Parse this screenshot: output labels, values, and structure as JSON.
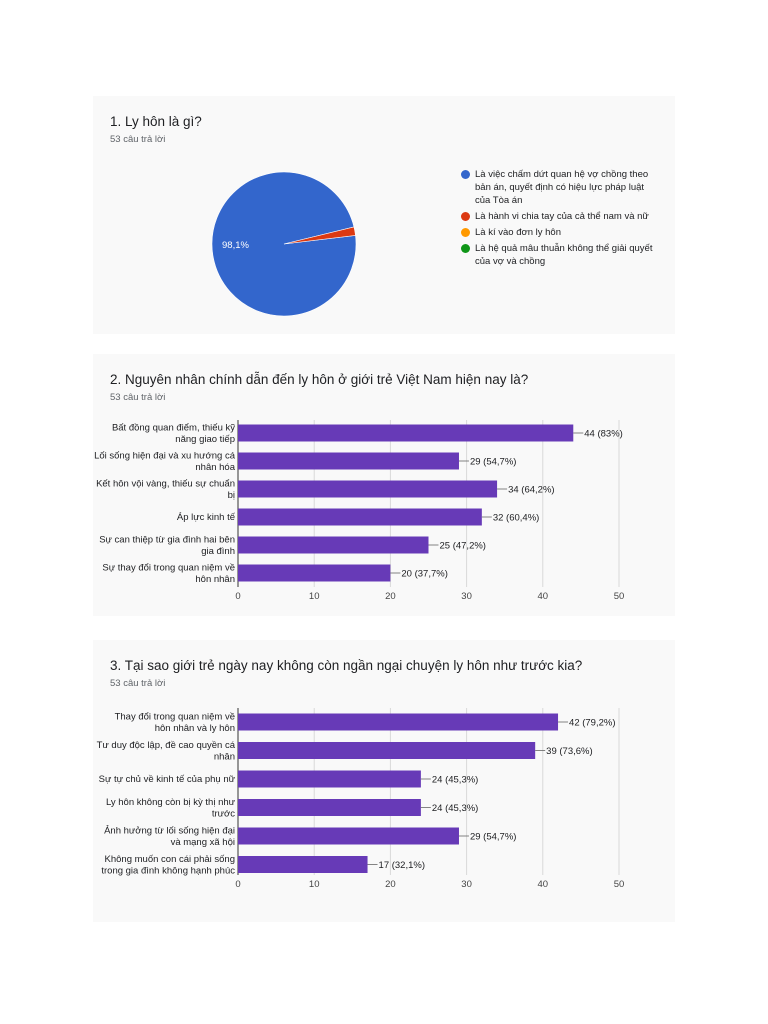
{
  "colors": {
    "bar": "#673ab7",
    "pie_main": "#3366cc",
    "pie_red": "#dc3912",
    "pie_orange": "#ff9900",
    "pie_green": "#109618"
  },
  "q1": {
    "title": "1. Ly hôn là gì?",
    "subtitle": "53 câu trả lời"
  },
  "q2": {
    "title": "2. Nguyên nhân chính dẫn đến ly hôn ở giới trẻ Việt Nam hiện nay là?",
    "subtitle": "53 câu trả lời"
  },
  "q3": {
    "title": "3. Tại sao giới trẻ ngày nay không còn ngần ngại chuyện ly hôn như trước kia?",
    "subtitle": "53 câu trả lời"
  },
  "chart_data": [
    {
      "type": "pie",
      "title": "1. Ly hôn là gì?",
      "categories": [
        "Là việc chấm dứt quan hệ vợ chồng theo bản án, quyết định có hiệu lực pháp luật của Tòa án",
        "Là hành vi chia tay của cả thể nam và nữ",
        "Là kí vào đơn ly hôn",
        "Là hệ quả mâu thuẫn không thể giải quyết của vợ và chồng"
      ],
      "values": [
        98.1,
        1.9,
        0,
        0
      ],
      "slice_labels": [
        "98,1%",
        "",
        "",
        ""
      ],
      "colors": [
        "#3366cc",
        "#dc3912",
        "#ff9900",
        "#109618"
      ],
      "legend": "right"
    },
    {
      "type": "bar",
      "orientation": "horizontal",
      "title": "2. Nguyên nhân chính dẫn đến ly hôn ở giới trẻ Việt Nam hiện nay là?",
      "categories": [
        [
          "Bất đồng quan điểm, thiếu kỹ",
          "năng giao tiếp"
        ],
        [
          "Lối sống hiện đại và xu hướng cá",
          "nhân hóa"
        ],
        [
          "Kết hôn vội vàng, thiếu sự chuẩn",
          "bị"
        ],
        [
          "Áp lực kinh tế"
        ],
        [
          "Sự can thiệp từ gia đình hai bên",
          "gia đình"
        ],
        [
          "Sự thay đổi trong quan niệm về",
          "hôn nhân"
        ]
      ],
      "values": [
        44,
        29,
        34,
        32,
        25,
        20
      ],
      "value_labels": [
        "44 (83%)",
        "29 (54,7%)",
        "34 (64,2%)",
        "32 (60,4%)",
        "25 (47,2%)",
        "20 (37,7%)"
      ],
      "xlim": [
        0,
        50
      ],
      "ticks": [
        0,
        10,
        20,
        30,
        40,
        50
      ]
    },
    {
      "type": "bar",
      "orientation": "horizontal",
      "title": "3. Tại sao giới trẻ ngày nay không còn ngần ngại chuyện ly hôn như trước kia?",
      "categories": [
        [
          "Thay đổi trong quan niệm về",
          "hôn nhân và ly hôn"
        ],
        [
          "Tư duy độc lập, đề cao quyền cá",
          "nhân"
        ],
        [
          "Sự tự chủ về kinh tế của phụ nữ"
        ],
        [
          "Ly hôn không còn bị kỳ thị như",
          "trước"
        ],
        [
          "Ảnh hưởng từ lối sống hiện đại",
          "và mạng xã hội"
        ],
        [
          "Không muốn con cái phải sống",
          "trong gia đình không hạnh phúc"
        ]
      ],
      "values": [
        42,
        39,
        24,
        24,
        29,
        17
      ],
      "value_labels": [
        "42 (79,2%)",
        "39 (73,6%)",
        "24 (45,3%)",
        "24 (45,3%)",
        "29 (54,7%)",
        "17 (32,1%)"
      ],
      "xlim": [
        0,
        50
      ],
      "ticks": [
        0,
        10,
        20,
        30,
        40,
        50
      ]
    }
  ]
}
